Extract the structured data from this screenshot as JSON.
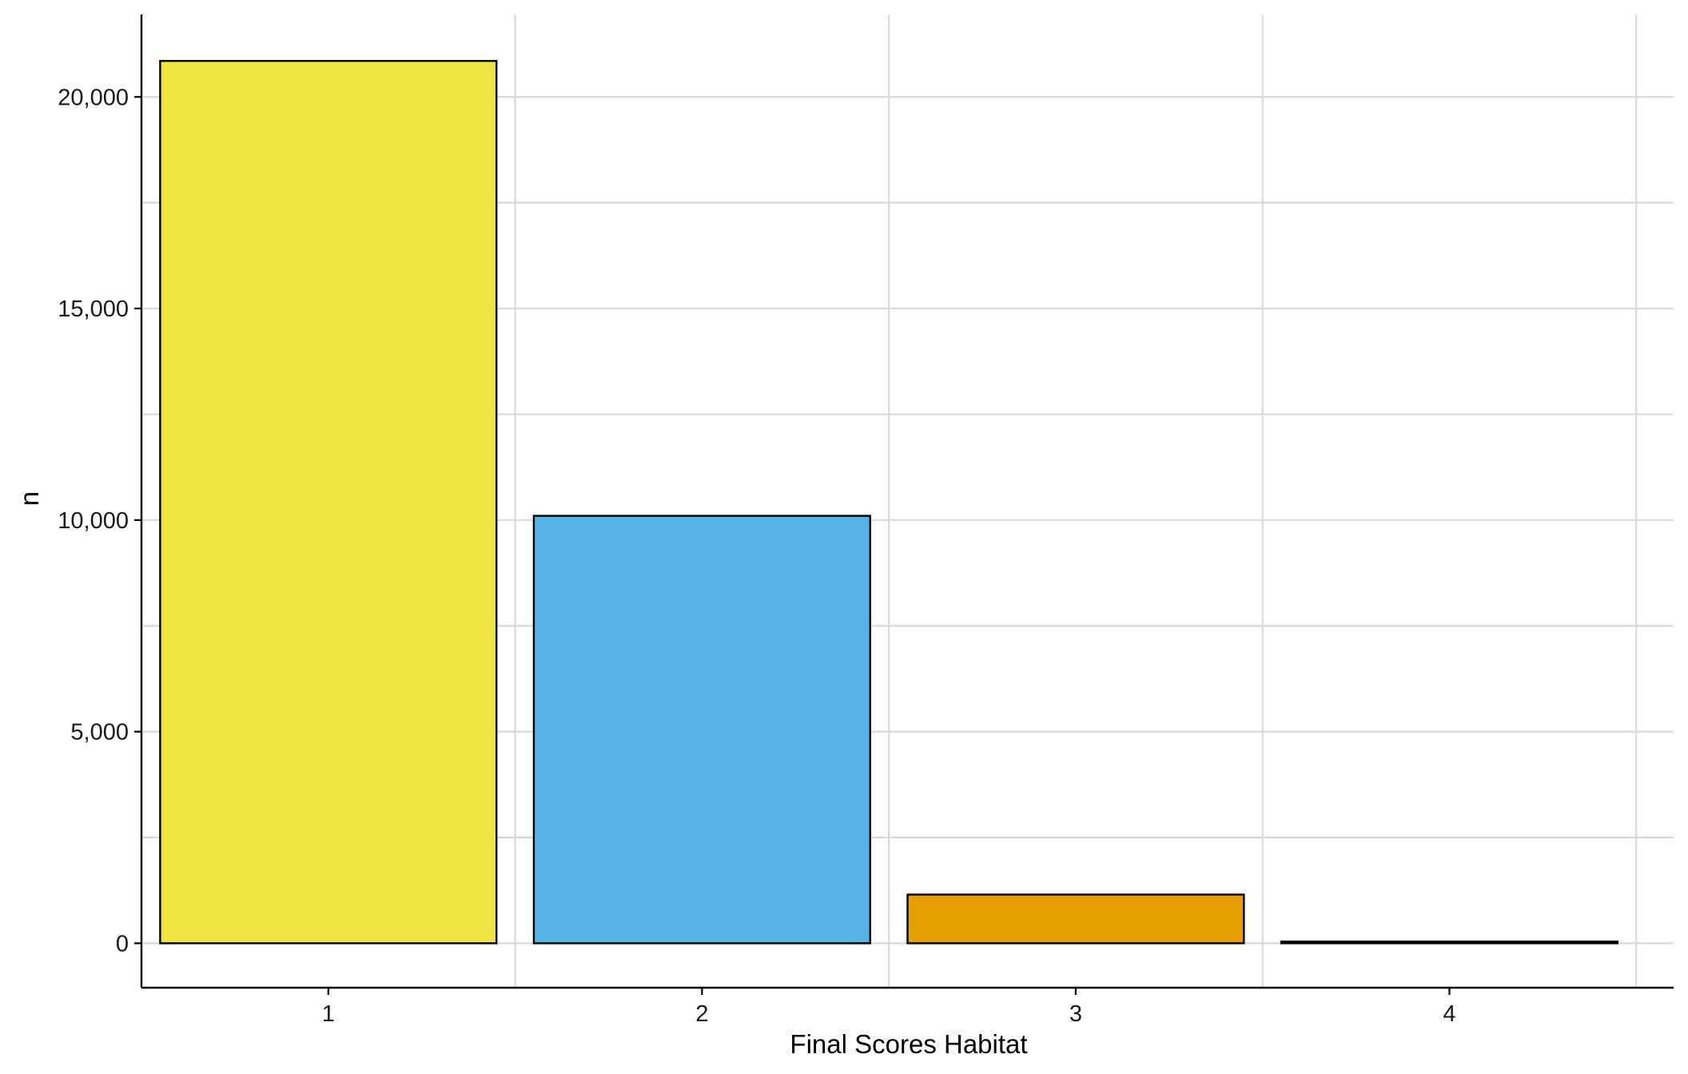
{
  "chart_data": {
    "type": "bar",
    "title": "",
    "xlabel": "Final Scores Habitat",
    "ylabel": "n",
    "categories": [
      "1",
      "2",
      "3",
      "4"
    ],
    "values": [
      20850,
      10100,
      1150,
      40
    ],
    "colors": [
      "#F0E442",
      "#56B4E9",
      "#E69F00",
      "#000000"
    ],
    "bar_outline": "#000000",
    "ylim": [
      -1050,
      21950
    ],
    "yticks": [
      0,
      5000,
      10000,
      15000,
      20000
    ],
    "ytick_labels": [
      "0",
      "5,000",
      "10,000",
      "15,000",
      "20,000"
    ],
    "y_minor_ticks": [
      2500,
      7500,
      12500,
      17500
    ],
    "xlim": [
      0.5,
      4.6
    ],
    "grid": true,
    "legend": "none"
  }
}
